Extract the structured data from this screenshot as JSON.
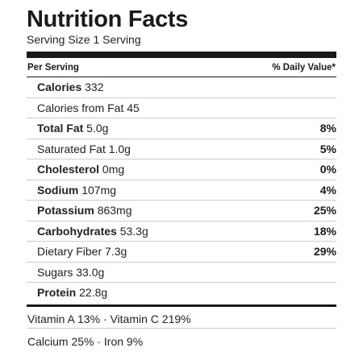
{
  "header": {
    "title": "Nutrition Facts",
    "serving": "Serving Size 1 Serving"
  },
  "columns": {
    "per_serving": "Per Serving",
    "daily_value": "% Daily Value*"
  },
  "rows": [
    {
      "name": "Calories",
      "bold": true,
      "amount": " 332",
      "dv": ""
    },
    {
      "name": "Calories from Fat",
      "bold": false,
      "amount": " 45",
      "dv": ""
    },
    {
      "name": "Total Fat",
      "bold": true,
      "amount": " 5.0g",
      "dv": "8%"
    },
    {
      "name": "Saturated Fat",
      "bold": false,
      "amount": " 1.0g",
      "dv": "5%"
    },
    {
      "name": "Cholesterol",
      "bold": true,
      "amount": " 0mg",
      "dv": "0%"
    },
    {
      "name": "Sodium",
      "bold": true,
      "amount": " 107mg",
      "dv": "4%"
    },
    {
      "name": "Potassium",
      "bold": true,
      "amount": " 863mg",
      "dv": "25%"
    },
    {
      "name": "Carbohydrates",
      "bold": true,
      "amount": " 53.3g",
      "dv": "18%"
    },
    {
      "name": "Dietary Fiber",
      "bold": false,
      "amount": " 7.3g",
      "dv": "29%"
    },
    {
      "name": "Sugars",
      "bold": false,
      "amount": " 33.0g",
      "dv": ""
    },
    {
      "name": "Protein",
      "bold": true,
      "amount": " 22.8g",
      "dv": ""
    }
  ],
  "vitamins": {
    "line1": "Vitamin A 13% · Vitamin C 219%",
    "line2": "Calcium 25% · Iron 9%"
  }
}
